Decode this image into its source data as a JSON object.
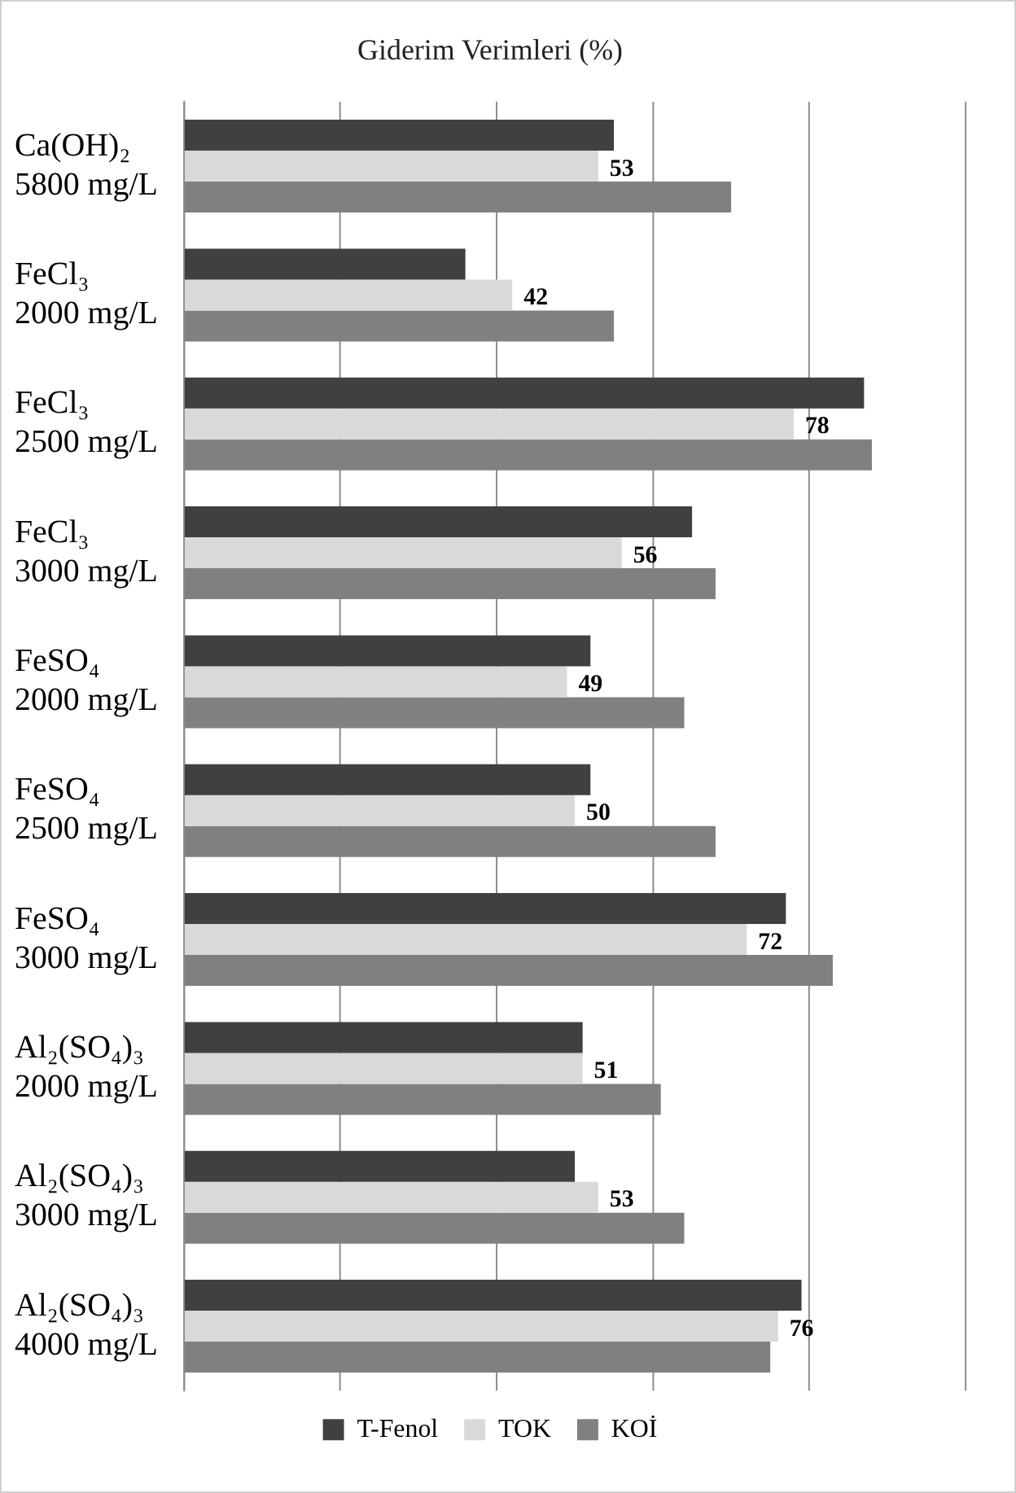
{
  "chart_data": {
    "type": "bar",
    "orientation": "horizontal",
    "title": "Giderim Verimleri (%)",
    "categories": [
      "Ca(OH)₂\n5800 mg/L",
      "FeCl₃\n2000 mg/L",
      "FeCl₃\n2500 mg/L",
      "FeCl₃\n3000 mg/L",
      "FeSO₄\n2000 mg/L",
      "FeSO₄\n2500 mg/L",
      "FeSO₄\n3000 mg/L",
      "Al₂(SO₄)₃\n2000 mg/L",
      "Al₂(SO₄)₃\n3000 mg/L",
      "Al₂(SO₄)₃\n4000 mg/L"
    ],
    "series": [
      {
        "name": "T-Fenol",
        "color": "#404040",
        "values": [
          55,
          36,
          87,
          65,
          52,
          52,
          77,
          51,
          50,
          79
        ]
      },
      {
        "name": "TOK",
        "color": "#d9d9d9",
        "values": [
          53,
          42,
          78,
          56,
          49,
          50,
          72,
          51,
          53,
          76
        ],
        "value_labels": [
          "53",
          "42",
          "78",
          "56",
          "49",
          "50",
          "72",
          "51",
          "53",
          "76"
        ]
      },
      {
        "name": "KOİ",
        "color": "#808080",
        "values": [
          70,
          55,
          88,
          68,
          64,
          68,
          83,
          61,
          64,
          75
        ]
      }
    ],
    "xlim": [
      0,
      100
    ],
    "xticks": [
      {
        "value": 0,
        "label": null
      },
      {
        "value": 20,
        "label": null
      },
      {
        "value": 40,
        "label": null
      },
      {
        "value": 60,
        "label": null
      },
      {
        "value": 80,
        "label": null
      },
      {
        "value": 100,
        "label": null
      }
    ],
    "tick_labels": "y",
    "grid": "x",
    "legend": "bottom"
  }
}
